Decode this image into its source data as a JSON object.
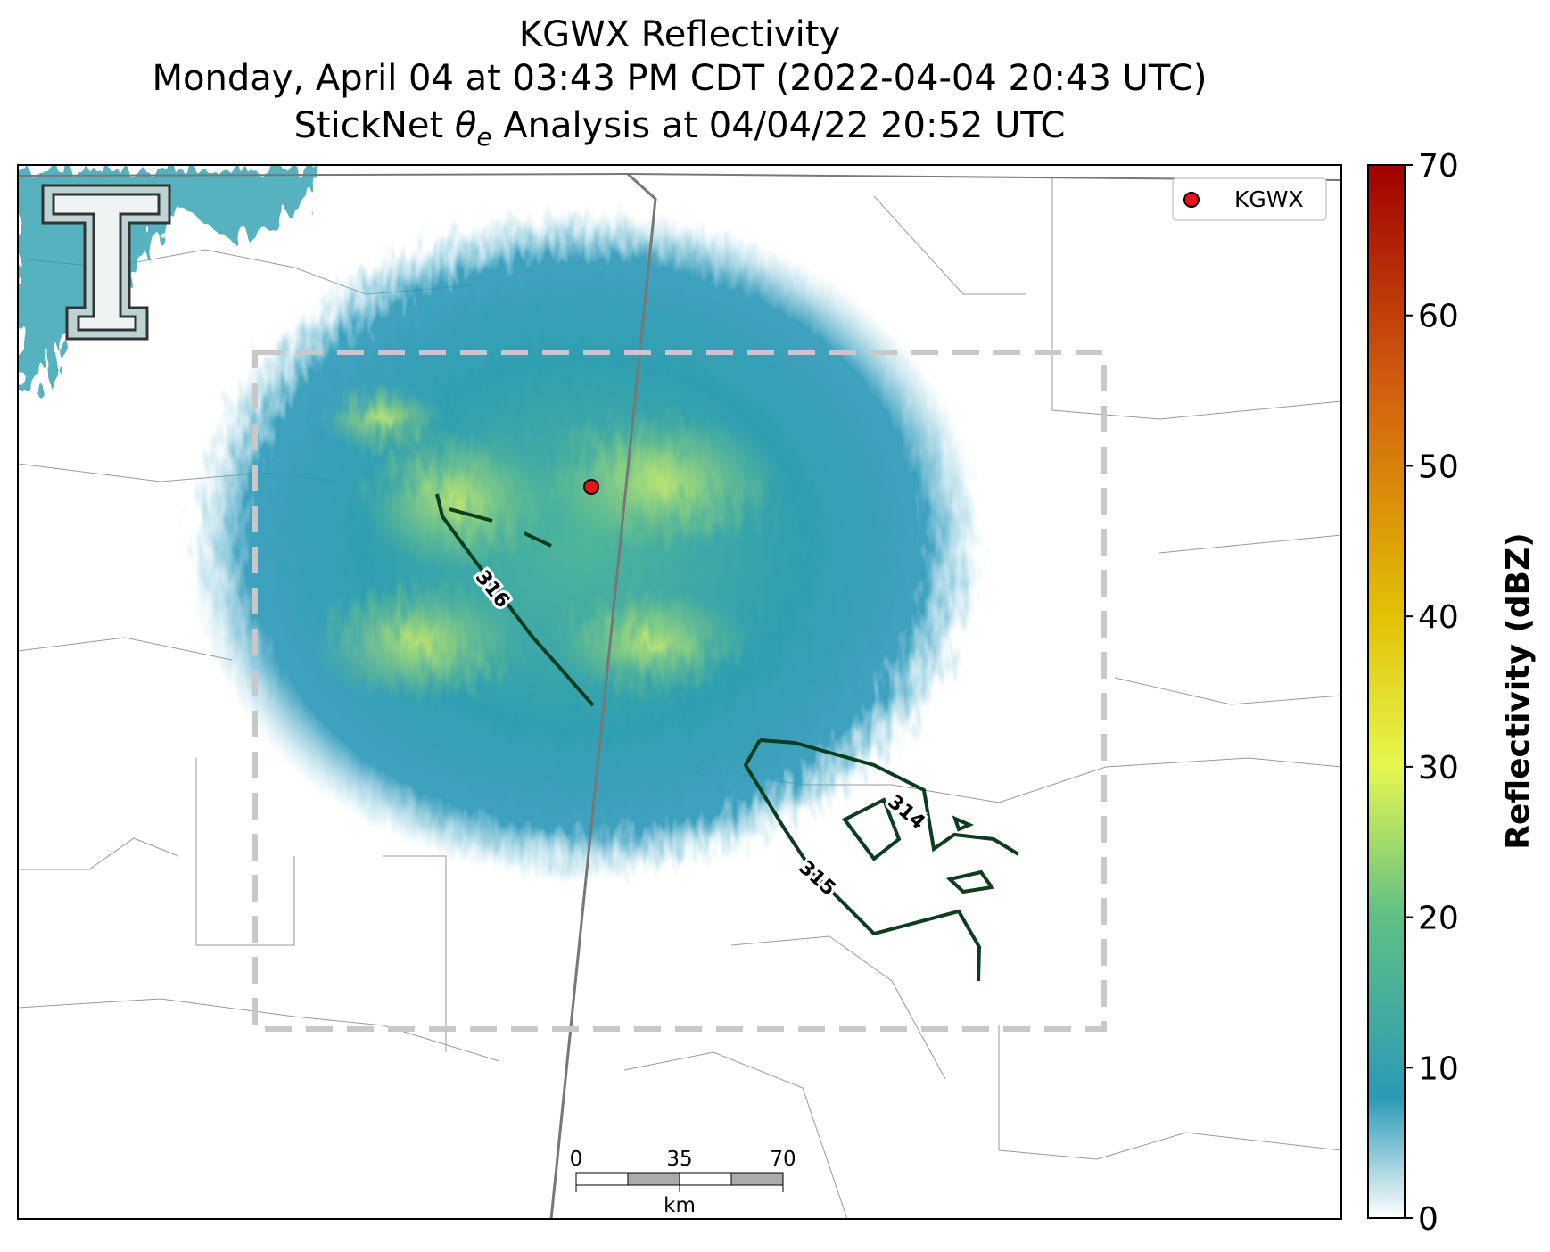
{
  "title": {
    "line1": "KGWX Reflectivity",
    "line2": "Monday, April 04 at 03:43 PM CDT (2022-04-04 20:43 UTC)",
    "line3": {
      "before": "StickNet ",
      "symbol": "θ",
      "subscript": "e",
      "after": " Analysis at 04/04/22 20:52 UTC"
    }
  },
  "legend": {
    "label": "KGWX",
    "marker_color": "#ee1111"
  },
  "contours": [
    {
      "label": "316"
    },
    {
      "label": "315"
    },
    {
      "label": "314"
    }
  ],
  "scale_bar": {
    "ticks": [
      0,
      35,
      70
    ],
    "unit": "km"
  },
  "colorbar": {
    "label": "Reflectivity (dBZ)",
    "lim": [
      0,
      70
    ],
    "ticks": [
      0,
      10,
      20,
      30,
      40,
      50,
      60,
      70
    ],
    "stops": [
      {
        "value": 0,
        "color": "#ffffff"
      },
      {
        "value": 8,
        "color": "#2a9ab5"
      },
      {
        "value": 20,
        "color": "#5fbf86"
      },
      {
        "value": 30,
        "color": "#e6f74f"
      },
      {
        "value": 40,
        "color": "#e2c205"
      },
      {
        "value": 55,
        "color": "#d2600f"
      },
      {
        "value": 70,
        "color": "#a00000"
      }
    ]
  }
}
